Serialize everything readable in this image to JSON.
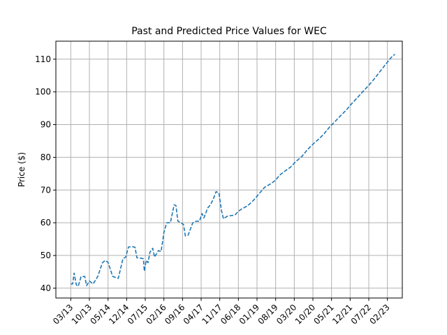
{
  "chart_data": {
    "type": "line",
    "title": "Past and Predicted Price Values for WEC",
    "xlabel": "",
    "ylabel": "Price ($)",
    "x_tick_labels": [
      "03/13",
      "10/13",
      "05/14",
      "12/14",
      "07/15",
      "02/16",
      "09/16",
      "04/17",
      "11/17",
      "06/18",
      "01/19",
      "08/19",
      "03/20",
      "10/20",
      "05/21",
      "12/21",
      "07/22",
      "02/23"
    ],
    "y_ticks": [
      40,
      50,
      60,
      70,
      80,
      90,
      100,
      110
    ],
    "ylim": [
      37,
      115.5
    ],
    "xlim": [
      -0.8,
      17.8
    ],
    "grid": true,
    "series": [
      {
        "color": "#1f77b4",
        "style": "dashed",
        "points": [
          [
            0.0,
            41.3
          ],
          [
            0.1,
            41.3
          ],
          [
            0.18,
            44.6
          ],
          [
            0.3,
            41.0
          ],
          [
            0.4,
            40.6
          ],
          [
            0.55,
            43.5
          ],
          [
            0.75,
            43.6
          ],
          [
            0.85,
            40.8
          ],
          [
            1.0,
            42.2
          ],
          [
            1.2,
            41.3
          ],
          [
            1.45,
            43.6
          ],
          [
            1.7,
            47.8
          ],
          [
            1.85,
            48.5
          ],
          [
            2.0,
            47.9
          ],
          [
            2.25,
            43.6
          ],
          [
            2.55,
            43.0
          ],
          [
            2.8,
            49.0
          ],
          [
            2.95,
            49.5
          ],
          [
            3.1,
            52.6
          ],
          [
            3.3,
            52.7
          ],
          [
            3.45,
            52.5
          ],
          [
            3.55,
            49.3
          ],
          [
            3.75,
            49.2
          ],
          [
            3.9,
            49.0
          ],
          [
            3.95,
            45.2
          ],
          [
            4.05,
            48.5
          ],
          [
            4.15,
            47.8
          ],
          [
            4.25,
            51.0
          ],
          [
            4.4,
            52.2
          ],
          [
            4.5,
            49.5
          ],
          [
            4.7,
            51.5
          ],
          [
            4.85,
            51.2
          ],
          [
            5.0,
            57.0
          ],
          [
            5.15,
            60.0
          ],
          [
            5.35,
            60.0
          ],
          [
            5.55,
            65.5
          ],
          [
            5.65,
            65.2
          ],
          [
            5.75,
            60.5
          ],
          [
            5.9,
            60.0
          ],
          [
            6.05,
            59.5
          ],
          [
            6.15,
            56.0
          ],
          [
            6.3,
            56.2
          ],
          [
            6.55,
            60.0
          ],
          [
            6.75,
            60.5
          ],
          [
            6.9,
            60.4
          ],
          [
            7.05,
            62.8
          ],
          [
            7.15,
            61.5
          ],
          [
            7.35,
            64.5
          ],
          [
            7.5,
            65.5
          ],
          [
            7.65,
            67.2
          ],
          [
            7.8,
            69.5
          ],
          [
            7.95,
            69.2
          ],
          [
            8.1,
            63.5
          ],
          [
            8.2,
            61.2
          ],
          [
            8.4,
            62.0
          ],
          [
            8.6,
            62.2
          ],
          [
            8.8,
            62.3
          ],
          [
            9.0,
            63.5
          ],
          [
            9.2,
            64.3
          ],
          [
            9.5,
            65.2
          ],
          [
            9.8,
            66.8
          ],
          [
            10.1,
            68.8
          ],
          [
            10.4,
            70.8
          ],
          [
            10.7,
            71.8
          ],
          [
            11.0,
            73.0
          ],
          [
            11.2,
            74.5
          ],
          [
            11.5,
            75.8
          ],
          [
            11.8,
            77.0
          ],
          [
            12.1,
            78.8
          ],
          [
            12.4,
            80.2
          ],
          [
            12.7,
            82.3
          ],
          [
            13.0,
            84.0
          ],
          [
            13.3,
            85.5
          ],
          [
            13.6,
            87.2
          ],
          [
            13.9,
            89.3
          ],
          [
            14.2,
            91.0
          ],
          [
            14.5,
            92.8
          ],
          [
            14.8,
            94.5
          ],
          [
            15.1,
            96.5
          ],
          [
            15.4,
            98.3
          ],
          [
            15.7,
            100.2
          ],
          [
            16.0,
            102.0
          ],
          [
            16.3,
            104.0
          ],
          [
            16.6,
            106.2
          ],
          [
            16.9,
            108.4
          ],
          [
            17.2,
            110.5
          ],
          [
            17.4,
            111.5
          ]
        ]
      }
    ]
  }
}
